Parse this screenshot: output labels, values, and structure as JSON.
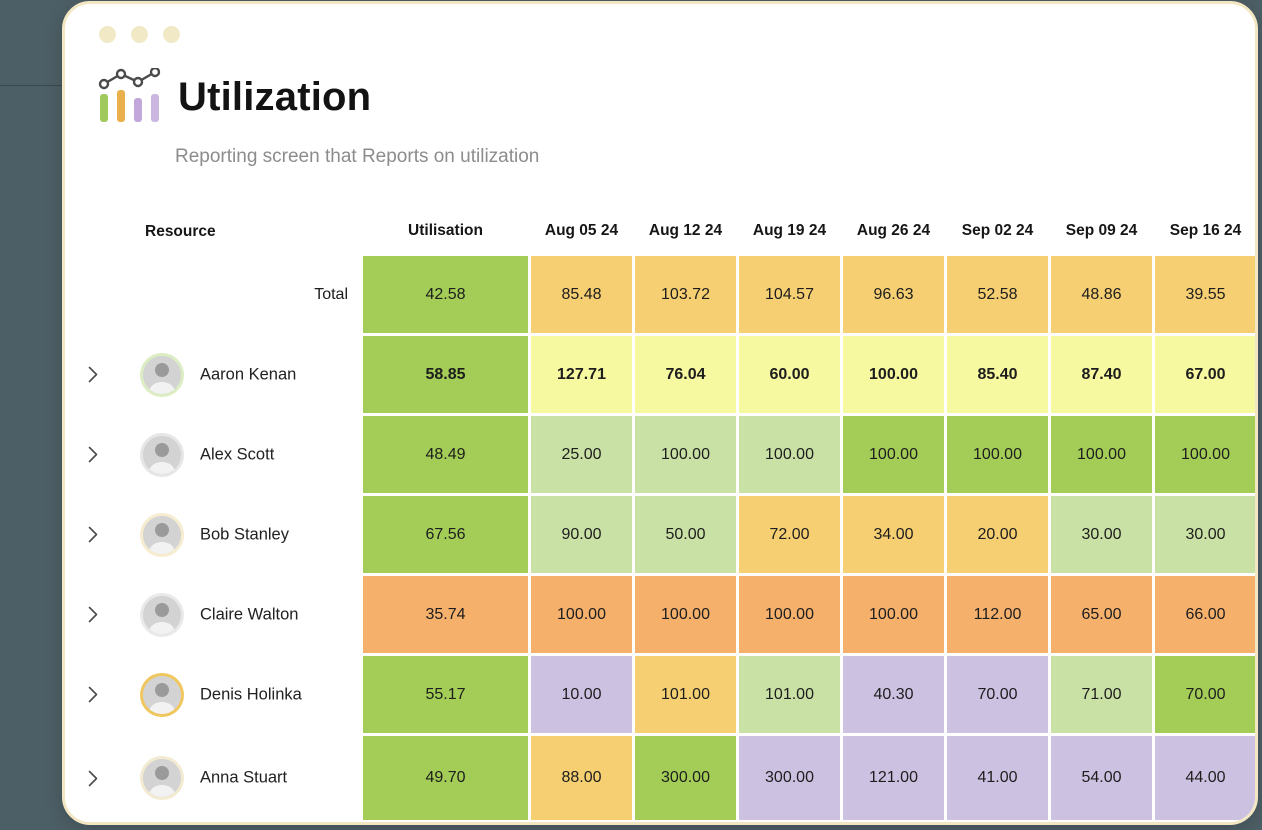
{
  "window": {
    "dots": [
      "dot-1",
      "dot-2",
      "dot-3"
    ]
  },
  "header": {
    "title": "Utilization",
    "subtitle": "Reporting screen that Reports on utilization",
    "icon": "bar-chart-with-trend-line-icon"
  },
  "colors": {
    "background": "#4d5f66",
    "card_border": "#f2e7c2",
    "green": "#a3cd56",
    "lightgreen": "#c9e1a4",
    "paleyellow": "#f7f9a1",
    "amber": "#f6cf72",
    "orange": "#f5b06c",
    "purple": "#cdc1e1"
  },
  "table": {
    "resource_header": "Resource",
    "columns": [
      "Utilisation",
      "Aug 05 24",
      "Aug 12 24",
      "Aug 19 24",
      "Aug 26 24",
      "Sep 02 24",
      "Sep 09 24",
      "Sep 16 24"
    ],
    "rows": [
      {
        "label": "Total",
        "kind": "total",
        "bold": false,
        "values": [
          "42.58",
          "85.48",
          "103.72",
          "104.57",
          "96.63",
          "52.58",
          "48.86",
          "39.55"
        ],
        "cell_colors": [
          "green",
          "amber",
          "amber",
          "amber",
          "amber",
          "amber",
          "amber",
          "amber"
        ]
      },
      {
        "label": "Aaron Kenan",
        "kind": "person",
        "bold": true,
        "ring": "#dcedc4",
        "values": [
          "58.85",
          "127.71",
          "76.04",
          "60.00",
          "100.00",
          "85.40",
          "87.40",
          "67.00"
        ],
        "cell_colors": [
          "green",
          "paleyellow",
          "paleyellow",
          "paleyellow",
          "paleyellow",
          "paleyellow",
          "paleyellow",
          "paleyellow"
        ]
      },
      {
        "label": "Alex Scott",
        "kind": "person",
        "bold": false,
        "ring": "#e6e6e6",
        "values": [
          "48.49",
          "25.00",
          "100.00",
          "100.00",
          "100.00",
          "100.00",
          "100.00",
          "100.00"
        ],
        "cell_colors": [
          "green",
          "lightgreen",
          "lightgreen",
          "lightgreen",
          "green",
          "green",
          "green",
          "green"
        ]
      },
      {
        "label": "Bob Stanley",
        "kind": "person",
        "bold": false,
        "ring": "#f6ecd0",
        "values": [
          "67.56",
          "90.00",
          "50.00",
          "72.00",
          "34.00",
          "20.00",
          "30.00",
          "30.00"
        ],
        "cell_colors": [
          "green",
          "lightgreen",
          "lightgreen",
          "amber",
          "amber",
          "amber",
          "lightgreen",
          "lightgreen"
        ]
      },
      {
        "label": "Claire Walton",
        "kind": "person",
        "bold": false,
        "ring": "#e9e9e9",
        "values": [
          "35.74",
          "100.00",
          "100.00",
          "100.00",
          "100.00",
          "112.00",
          "65.00",
          "66.00"
        ],
        "cell_colors": [
          "orange",
          "orange",
          "orange",
          "orange",
          "orange",
          "orange",
          "orange",
          "orange"
        ]
      },
      {
        "label": "Denis Holinka",
        "kind": "person",
        "bold": false,
        "ring": "#f0c75e",
        "values": [
          "55.17",
          "10.00",
          "101.00",
          "101.00",
          "40.30",
          "70.00",
          "71.00",
          "70.00"
        ],
        "cell_colors": [
          "green",
          "purple",
          "amber",
          "lightgreen",
          "purple",
          "purple",
          "lightgreen",
          "green"
        ]
      },
      {
        "label": "Anna Stuart",
        "kind": "person",
        "bold": false,
        "ring": "#f3ead2",
        "values": [
          "49.70",
          "88.00",
          "300.00",
          "300.00",
          "121.00",
          "41.00",
          "54.00",
          "44.00"
        ],
        "cell_colors": [
          "green",
          "amber",
          "green",
          "purple",
          "purple",
          "purple",
          "purple",
          "purple"
        ]
      }
    ]
  }
}
